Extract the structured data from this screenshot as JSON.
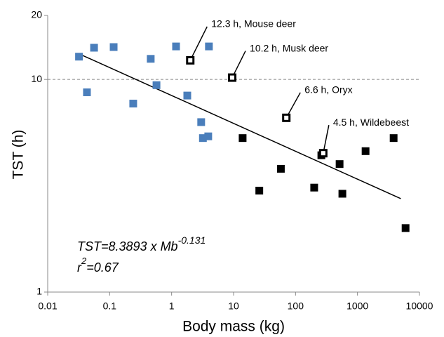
{
  "chart_data": {
    "type": "scatter",
    "x_label": "Body mass (kg)",
    "y_label": "TST (h)",
    "log_x": true,
    "log_y": true,
    "xlim": [
      0.01,
      10000
    ],
    "ylim": [
      1,
      20
    ],
    "xticks": [
      0.01,
      0.1,
      1,
      10,
      100,
      1000,
      10000
    ],
    "yticks": [
      1,
      10,
      20
    ],
    "reference_line": {
      "y": 10,
      "color": "#888888"
    },
    "series": [
      {
        "color": "#4a7ebb",
        "marker": "filled",
        "x": [
          0.032,
          0.043,
          0.056,
          0.116,
          0.24,
          0.46,
          0.57,
          1.18,
          1.79,
          3.0,
          3.2,
          4.0,
          3.9
        ],
        "values": [
          12.8,
          8.7,
          14.1,
          14.2,
          7.7,
          12.5,
          9.4,
          14.3,
          8.4,
          6.3,
          5.3,
          14.3,
          5.4
        ]
      },
      {
        "color": "#000000",
        "marker": "filled",
        "x": [
          14,
          58,
          26,
          200,
          261,
          514,
          570,
          1350,
          3830,
          5970
        ],
        "values": [
          5.3,
          3.8,
          3.0,
          3.1,
          4.4,
          4.0,
          2.9,
          4.6,
          5.3,
          2.0
        ]
      },
      {
        "color": "#000000",
        "marker": "open",
        "x": [
          2.0,
          9.5,
          71,
          280
        ],
        "values": [
          12.3,
          10.2,
          6.6,
          4.5
        ],
        "value_labels": [
          "12.3 h, Mouse deer",
          "10.2 h, Musk deer",
          "6.6 h, Oryx",
          "4.5 h, Wildebeest"
        ]
      }
    ],
    "trend_line": {
      "x": [
        0.032,
        5000
      ],
      "values": [
        13.2,
        2.75
      ],
      "color": "#000000"
    },
    "equation": {
      "text": "TST=8.3893 x Mb",
      "exponent": "-0.131"
    },
    "r_squared": {
      "text": "r",
      "sup": "2",
      "rest": "=0.67"
    }
  }
}
